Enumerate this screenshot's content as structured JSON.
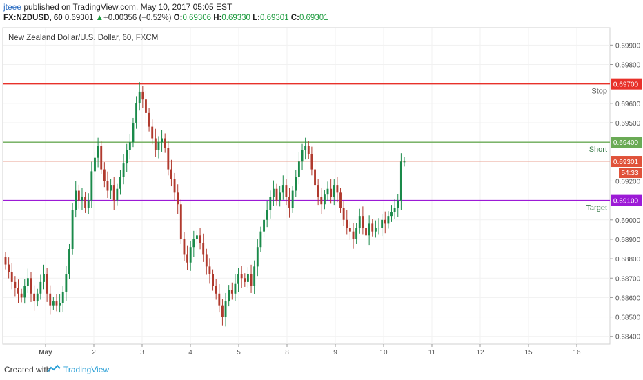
{
  "header": {
    "author": "jteee",
    "published_text": " published on TradingView.com, May 10, 2017 05:05 EST",
    "symbol": "FX:NZDUSD, 60",
    "last": "0.69301",
    "change": "+0.00356 (+0.52%)",
    "o_label": "O:",
    "o_value": "0.69306",
    "h_label": "H:",
    "h_value": "0.69330",
    "l_label": "L:",
    "l_value": "0.69301",
    "c_label": "C:",
    "c_value": "0.69301"
  },
  "footer": {
    "created_with": "Created with",
    "brand": "TradingView"
  },
  "colors": {
    "up": "#1a8a4a",
    "down": "#b03a2e",
    "stop": "#e8312a",
    "short": "#6aaa55",
    "target": "#9c1ad6",
    "current": "#e8a090"
  },
  "chart_data": {
    "type": "candlestick",
    "title": "New Zealand Dollar/U.S. Dollar, 60, FXCM",
    "ylim": [
      0.6836,
      0.6999
    ],
    "y_ticks": [
      "0.69900",
      "0.69800",
      "0.69600",
      "0.69500",
      "0.69200",
      "0.69000",
      "0.68900",
      "0.68800",
      "0.68700",
      "0.68600",
      "0.68500",
      "0.68400"
    ],
    "x_tick_labels": [
      "May",
      "2",
      "3",
      "4",
      "5",
      "8",
      "9",
      "10",
      "11",
      "12",
      "15",
      "16"
    ],
    "levels": [
      {
        "name": "Stop",
        "value": 0.697,
        "label": "0.69700",
        "color": "#e8312a"
      },
      {
        "name": "Short",
        "value": 0.694,
        "label": "0.69400",
        "color": "#6aaa55"
      },
      {
        "name": "Target",
        "value": 0.691,
        "label": "0.69100",
        "color": "#9c1ad6"
      }
    ],
    "current_price": {
      "value": 0.69301,
      "label": "0.69301",
      "countdown": "54:33"
    },
    "closes": [
      0.6877,
      0.6873,
      0.6868,
      0.6865,
      0.6862,
      0.686,
      0.6866,
      0.687,
      0.6862,
      0.6858,
      0.6862,
      0.6868,
      0.6872,
      0.6862,
      0.6856,
      0.6858,
      0.6856,
      0.6857,
      0.6863,
      0.6872,
      0.6885,
      0.6905,
      0.6915,
      0.691,
      0.6912,
      0.6906,
      0.691,
      0.6925,
      0.6932,
      0.6938,
      0.6926,
      0.692,
      0.6915,
      0.6918,
      0.691,
      0.6916,
      0.6922,
      0.6929,
      0.6936,
      0.694,
      0.695,
      0.696,
      0.6966,
      0.6962,
      0.6955,
      0.6948,
      0.6942,
      0.6936,
      0.694,
      0.6942,
      0.6937,
      0.6926,
      0.6921,
      0.6914,
      0.6908,
      0.689,
      0.6882,
      0.6878,
      0.6886,
      0.689,
      0.6892,
      0.6888,
      0.6882,
      0.6876,
      0.6872,
      0.6866,
      0.6862,
      0.6856,
      0.685,
      0.6858,
      0.6864,
      0.6862,
      0.6867,
      0.6872,
      0.687,
      0.6868,
      0.6872,
      0.6866,
      0.6876,
      0.6886,
      0.6894,
      0.69,
      0.6905,
      0.6912,
      0.6916,
      0.691,
      0.6914,
      0.6918,
      0.6912,
      0.6906,
      0.6915,
      0.6922,
      0.693,
      0.6936,
      0.6938,
      0.6934,
      0.6926,
      0.6918,
      0.6912,
      0.6908,
      0.6913,
      0.6916,
      0.6912,
      0.6918,
      0.6914,
      0.6906,
      0.69,
      0.6896,
      0.6894,
      0.689,
      0.6896,
      0.6902,
      0.6896,
      0.6892,
      0.6898,
      0.6894,
      0.6896,
      0.6896,
      0.69,
      0.6898,
      0.6902,
      0.6904,
      0.6906,
      0.691,
      0.693,
      0.693
    ]
  }
}
